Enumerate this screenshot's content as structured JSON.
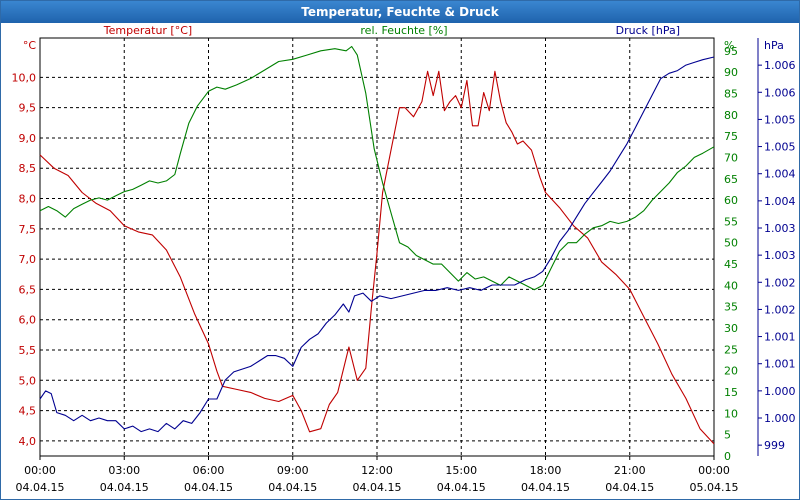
{
  "window": {
    "title": "Temperatur, Feuchte & Druck"
  },
  "chart_data": {
    "type": "line",
    "title": "Temperatur, Feuchte & Druck",
    "grid": true,
    "x": {
      "range_hours": [
        0,
        24
      ],
      "ticks": [
        {
          "h": 0,
          "time": "00:00",
          "date": "04.04.15"
        },
        {
          "h": 3,
          "time": "03:00",
          "date": "04.04.15"
        },
        {
          "h": 6,
          "time": "06:00",
          "date": "04.04.15"
        },
        {
          "h": 9,
          "time": "09:00",
          "date": "04.04.15"
        },
        {
          "h": 12,
          "time": "12:00",
          "date": "04.04.15"
        },
        {
          "h": 15,
          "time": "15:00",
          "date": "04.04.15"
        },
        {
          "h": 18,
          "time": "18:00",
          "date": "04.04.15"
        },
        {
          "h": 21,
          "time": "21:00",
          "date": "04.04.15"
        },
        {
          "h": 24,
          "time": "00:00",
          "date": "05.04.15"
        }
      ]
    },
    "axes": {
      "temperature": {
        "unit": "°C",
        "range": [
          3.75,
          10.65
        ],
        "ticks": [
          "4,0",
          "4,5",
          "5,0",
          "5,5",
          "6,0",
          "6,5",
          "7,0",
          "7,5",
          "8,0",
          "8,5",
          "9,0",
          "9,5",
          "10,0"
        ],
        "tick_values": [
          4,
          4.5,
          5,
          5.5,
          6,
          6.5,
          7,
          7.5,
          8,
          8.5,
          9,
          9.5,
          10
        ],
        "color": "#c00000"
      },
      "humidity": {
        "unit": "%",
        "range": [
          0,
          98
        ],
        "ticks": [
          "0",
          "5",
          "10",
          "15",
          "20",
          "25",
          "30",
          "35",
          "40",
          "45",
          "50",
          "55",
          "60",
          "65",
          "70",
          "75",
          "80",
          "85",
          "90",
          "95"
        ],
        "tick_values": [
          0,
          5,
          10,
          15,
          20,
          25,
          30,
          35,
          40,
          45,
          50,
          55,
          60,
          65,
          70,
          75,
          80,
          85,
          90,
          95
        ],
        "color": "#008000"
      },
      "pressure": {
        "unit": "hPa",
        "range": [
          998.8,
          1006.5
        ],
        "ticks": [
          "999",
          "1.000",
          "1.000",
          "1.001",
          "1.001",
          "1.002",
          "1.002",
          "1.003",
          "1.003",
          "1.004",
          "1.004",
          "1.005",
          "1.005",
          "1.006",
          "1.006"
        ],
        "tick_values": [
          999,
          999.5,
          1000,
          1000.5,
          1001,
          1001.5,
          1002,
          1002.5,
          1003,
          1003.5,
          1004,
          1004.5,
          1005,
          1005.5,
          1006
        ],
        "color": "#000090"
      }
    },
    "series": [
      {
        "name": "Temperatur [°C]",
        "axis": "temperature",
        "color": "#c00000",
        "points": [
          [
            0,
            8.72
          ],
          [
            0.5,
            8.5
          ],
          [
            1,
            8.38
          ],
          [
            1.5,
            8.1
          ],
          [
            2,
            7.92
          ],
          [
            2.5,
            7.8
          ],
          [
            3,
            7.55
          ],
          [
            3.5,
            7.45
          ],
          [
            4,
            7.4
          ],
          [
            4.5,
            7.15
          ],
          [
            5,
            6.7
          ],
          [
            5.5,
            6.1
          ],
          [
            6,
            5.6
          ],
          [
            6.3,
            5.15
          ],
          [
            6.5,
            4.9
          ],
          [
            7,
            4.85
          ],
          [
            7.5,
            4.8
          ],
          [
            8,
            4.7
          ],
          [
            8.5,
            4.65
          ],
          [
            9,
            4.75
          ],
          [
            9.3,
            4.5
          ],
          [
            9.6,
            4.15
          ],
          [
            10,
            4.2
          ],
          [
            10.3,
            4.6
          ],
          [
            10.6,
            4.8
          ],
          [
            11,
            5.55
          ],
          [
            11.3,
            5.0
          ],
          [
            11.6,
            5.2
          ],
          [
            11.8,
            6.2
          ],
          [
            12,
            7.1
          ],
          [
            12.2,
            8.1
          ],
          [
            12.5,
            8.8
          ],
          [
            12.8,
            9.5
          ],
          [
            13,
            9.5
          ],
          [
            13.3,
            9.35
          ],
          [
            13.6,
            9.6
          ],
          [
            13.8,
            10.1
          ],
          [
            14,
            9.7
          ],
          [
            14.2,
            10.1
          ],
          [
            14.4,
            9.45
          ],
          [
            14.6,
            9.6
          ],
          [
            14.8,
            9.7
          ],
          [
            15,
            9.5
          ],
          [
            15.2,
            9.95
          ],
          [
            15.4,
            9.2
          ],
          [
            15.6,
            9.2
          ],
          [
            15.8,
            9.75
          ],
          [
            16,
            9.45
          ],
          [
            16.2,
            10.1
          ],
          [
            16.4,
            9.6
          ],
          [
            16.6,
            9.25
          ],
          [
            16.8,
            9.1
          ],
          [
            17,
            8.9
          ],
          [
            17.2,
            8.95
          ],
          [
            17.5,
            8.8
          ],
          [
            17.8,
            8.35
          ],
          [
            18,
            8.1
          ],
          [
            18.5,
            7.85
          ],
          [
            19,
            7.55
          ],
          [
            19.5,
            7.35
          ],
          [
            20,
            6.95
          ],
          [
            20.5,
            6.75
          ],
          [
            21,
            6.5
          ],
          [
            21.5,
            6.05
          ],
          [
            22,
            5.6
          ],
          [
            22.5,
            5.1
          ],
          [
            23,
            4.7
          ],
          [
            23.5,
            4.2
          ],
          [
            24,
            3.95
          ]
        ]
      },
      {
        "name": "rel. Feuchte [%]",
        "axis": "humidity",
        "color": "#008000",
        "points": [
          [
            0,
            57.5
          ],
          [
            0.3,
            58.5
          ],
          [
            0.6,
            57.5
          ],
          [
            0.9,
            56.0
          ],
          [
            1.2,
            58.0
          ],
          [
            1.5,
            59.0
          ],
          [
            1.8,
            60.0
          ],
          [
            2.1,
            60.5
          ],
          [
            2.4,
            60.0
          ],
          [
            2.7,
            61.0
          ],
          [
            3,
            62.0
          ],
          [
            3.3,
            62.5
          ],
          [
            3.6,
            63.5
          ],
          [
            3.9,
            64.5
          ],
          [
            4.2,
            64.0
          ],
          [
            4.5,
            64.5
          ],
          [
            4.8,
            66.0
          ],
          [
            5.0,
            71.0
          ],
          [
            5.3,
            78.0
          ],
          [
            5.6,
            82.0
          ],
          [
            6.0,
            85.5
          ],
          [
            6.3,
            86.5
          ],
          [
            6.6,
            86.0
          ],
          [
            7,
            87.0
          ],
          [
            7.5,
            88.5
          ],
          [
            8,
            90.5
          ],
          [
            8.5,
            92.5
          ],
          [
            9,
            93.0
          ],
          [
            9.5,
            94.0
          ],
          [
            10,
            95.0
          ],
          [
            10.5,
            95.5
          ],
          [
            10.9,
            95.0
          ],
          [
            11.1,
            96.0
          ],
          [
            11.3,
            94.0
          ],
          [
            11.6,
            85.0
          ],
          [
            11.9,
            72.0
          ],
          [
            12.2,
            64.0
          ],
          [
            12.5,
            57.0
          ],
          [
            12.8,
            50.0
          ],
          [
            13.1,
            49.0
          ],
          [
            13.4,
            47.0
          ],
          [
            13.7,
            46.0
          ],
          [
            14,
            45.0
          ],
          [
            14.3,
            45.0
          ],
          [
            14.6,
            43.0
          ],
          [
            14.9,
            41.0
          ],
          [
            15.2,
            43.0
          ],
          [
            15.5,
            41.5
          ],
          [
            15.8,
            42.0
          ],
          [
            16.1,
            41.0
          ],
          [
            16.4,
            40.0
          ],
          [
            16.7,
            42.0
          ],
          [
            17,
            41.0
          ],
          [
            17.3,
            40.0
          ],
          [
            17.6,
            39.0
          ],
          [
            17.9,
            40.0
          ],
          [
            18.2,
            44.0
          ],
          [
            18.5,
            48.0
          ],
          [
            18.8,
            50.0
          ],
          [
            19.1,
            50.0
          ],
          [
            19.4,
            52.0
          ],
          [
            19.7,
            53.5
          ],
          [
            20,
            54.0
          ],
          [
            20.3,
            55.0
          ],
          [
            20.6,
            54.5
          ],
          [
            20.9,
            55.0
          ],
          [
            21.2,
            56.0
          ],
          [
            21.5,
            57.5
          ],
          [
            21.8,
            60.0
          ],
          [
            22.1,
            62.0
          ],
          [
            22.4,
            64.0
          ],
          [
            22.7,
            66.5
          ],
          [
            23,
            68.0
          ],
          [
            23.3,
            70.0
          ],
          [
            23.6,
            71.0
          ],
          [
            24,
            72.5
          ]
        ]
      },
      {
        "name": "Druck [hPa]",
        "axis": "pressure",
        "color": "#000090",
        "points": [
          [
            0,
            999.85
          ],
          [
            0.2,
            1000.0
          ],
          [
            0.4,
            999.95
          ],
          [
            0.6,
            999.6
          ],
          [
            0.9,
            999.55
          ],
          [
            1.2,
            999.45
          ],
          [
            1.5,
            999.55
          ],
          [
            1.8,
            999.45
          ],
          [
            2.1,
            999.5
          ],
          [
            2.4,
            999.45
          ],
          [
            2.7,
            999.45
          ],
          [
            3,
            999.3
          ],
          [
            3.3,
            999.35
          ],
          [
            3.6,
            999.25
          ],
          [
            3.9,
            999.3
          ],
          [
            4.2,
            999.25
          ],
          [
            4.5,
            999.4
          ],
          [
            4.8,
            999.3
          ],
          [
            5.1,
            999.45
          ],
          [
            5.4,
            999.4
          ],
          [
            5.7,
            999.6
          ],
          [
            6,
            999.85
          ],
          [
            6.3,
            999.85
          ],
          [
            6.6,
            1000.2
          ],
          [
            6.9,
            1000.35
          ],
          [
            7.2,
            1000.4
          ],
          [
            7.5,
            1000.45
          ],
          [
            7.8,
            1000.55
          ],
          [
            8.1,
            1000.65
          ],
          [
            8.4,
            1000.65
          ],
          [
            8.7,
            1000.6
          ],
          [
            9,
            1000.45
          ],
          [
            9.3,
            1000.8
          ],
          [
            9.6,
            1000.95
          ],
          [
            9.9,
            1001.05
          ],
          [
            10.2,
            1001.25
          ],
          [
            10.5,
            1001.4
          ],
          [
            10.8,
            1001.6
          ],
          [
            11.0,
            1001.45
          ],
          [
            11.2,
            1001.75
          ],
          [
            11.5,
            1001.8
          ],
          [
            11.8,
            1001.65
          ],
          [
            12.1,
            1001.75
          ],
          [
            12.5,
            1001.7
          ],
          [
            12.9,
            1001.75
          ],
          [
            13.3,
            1001.8
          ],
          [
            13.7,
            1001.85
          ],
          [
            14.1,
            1001.85
          ],
          [
            14.5,
            1001.9
          ],
          [
            14.9,
            1001.85
          ],
          [
            15.3,
            1001.9
          ],
          [
            15.7,
            1001.85
          ],
          [
            16.1,
            1001.95
          ],
          [
            16.5,
            1001.95
          ],
          [
            16.9,
            1001.95
          ],
          [
            17.3,
            1002.05
          ],
          [
            17.6,
            1002.1
          ],
          [
            17.9,
            1002.2
          ],
          [
            18.2,
            1002.45
          ],
          [
            18.5,
            1002.75
          ],
          [
            18.8,
            1002.95
          ],
          [
            19.1,
            1003.2
          ],
          [
            19.4,
            1003.45
          ],
          [
            19.7,
            1003.65
          ],
          [
            20,
            1003.85
          ],
          [
            20.3,
            1004.05
          ],
          [
            20.6,
            1004.3
          ],
          [
            20.9,
            1004.55
          ],
          [
            21.2,
            1004.85
          ],
          [
            21.5,
            1005.15
          ],
          [
            21.8,
            1005.45
          ],
          [
            22.1,
            1005.75
          ],
          [
            22.4,
            1005.85
          ],
          [
            22.7,
            1005.9
          ],
          [
            23,
            1006.0
          ],
          [
            23.3,
            1006.05
          ],
          [
            23.6,
            1006.1
          ],
          [
            24,
            1006.15
          ]
        ]
      }
    ]
  }
}
